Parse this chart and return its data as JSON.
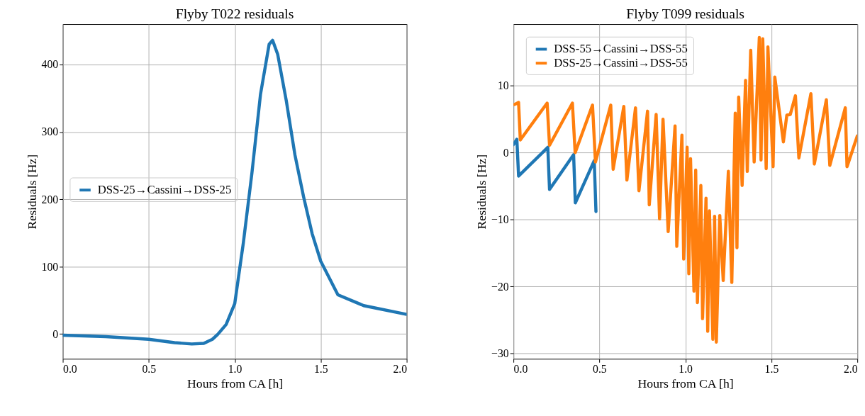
{
  "chart_data": [
    {
      "type": "line",
      "title": "Flyby T022 residuals",
      "xlabel": "Hours from CA [h]",
      "ylabel": "Residuals [Hz]",
      "xlim": [
        0,
        2
      ],
      "xticks": [
        {
          "value": 0,
          "label": "0.0"
        },
        {
          "value": 0.5,
          "label": "0.5"
        },
        {
          "value": 1,
          "label": "1.0"
        },
        {
          "value": 1.5,
          "label": "1.5"
        },
        {
          "value": 2,
          "label": "2.0"
        }
      ],
      "ylim": [
        -37,
        460
      ],
      "yticks": [
        0,
        100,
        200,
        300,
        400
      ],
      "grid": true,
      "legend": "center left",
      "series": [
        {
          "name": "DSS-25→Cassini→DSS-25",
          "color": "#1f77b4",
          "x": [
            0,
            0.25,
            0.5,
            0.65,
            0.75,
            0.82,
            0.87,
            0.9,
            0.95,
            1.0,
            1.05,
            1.1,
            1.15,
            1.2,
            1.22,
            1.25,
            1.3,
            1.35,
            1.4,
            1.45,
            1.5,
            1.6,
            1.75,
            2.0
          ],
          "values": [
            -2,
            -4,
            -8,
            -13,
            -15,
            -14,
            -8,
            -1,
            14,
            45,
            135,
            239,
            356,
            430,
            436,
            415,
            346,
            266,
            204,
            149,
            108,
            58,
            42,
            29
          ]
        }
      ]
    },
    {
      "type": "line",
      "title": "Flyby T099 residuals",
      "xlabel": "Hours from CA [h]",
      "ylabel": "Residuals [Hz]",
      "xlim": [
        0,
        2
      ],
      "xticks": [
        {
          "value": 0,
          "label": "0.0"
        },
        {
          "value": 0.5,
          "label": "0.5"
        },
        {
          "value": 1,
          "label": "1.0"
        },
        {
          "value": 1.5,
          "label": "1.5"
        },
        {
          "value": 2,
          "label": "2.0"
        }
      ],
      "ylim": [
        -30.8,
        19.2
      ],
      "yticks": [
        {
          "value": -30,
          "label": "−30"
        },
        {
          "value": -20,
          "label": "−20"
        },
        {
          "value": -10,
          "label": "−10"
        },
        0,
        10
      ],
      "grid": true,
      "legend": "top left",
      "series": [
        {
          "name": "DSS-55→Cassini→DSS-55",
          "color": "#1f77b4",
          "x": [
            0,
            0.02,
            0.03,
            0.2,
            0.21,
            0.35,
            0.36,
            0.47,
            0.48
          ],
          "values": [
            1.2,
            2,
            -3.5,
            0.8,
            -5.5,
            -0.3,
            -7.5,
            -1.2,
            -8.8
          ]
        },
        {
          "name": "DSS-25→Cassini→DSS-55",
          "color": "#ff7f0e",
          "x": [
            0.007,
            0.03,
            0.04,
            0.196,
            0.21,
            0.343,
            0.359,
            0.46,
            0.477,
            0.566,
            0.58,
            0.642,
            0.66,
            0.71,
            0.73,
            0.78,
            0.79,
            0.83,
            0.85,
            0.87,
            0.9,
            0.94,
            0.95,
            0.98,
            0.99,
            1.01,
            1.02,
            1.03,
            1.05,
            1.06,
            1.07,
            1.09,
            1.1,
            1.12,
            1.13,
            1.14,
            1.16,
            1.17,
            1.18,
            1.2,
            1.22,
            1.25,
            1.27,
            1.29,
            1.3,
            1.31,
            1.33,
            1.35,
            1.36,
            1.38,
            1.4,
            1.43,
            1.44,
            1.45,
            1.47,
            1.48,
            1.51,
            1.52,
            1.57,
            1.59,
            1.61,
            1.64,
            1.66,
            1.73,
            1.75,
            1.82,
            1.84,
            1.93,
            1.94,
            2.0
          ],
          "values": [
            7.2,
            7.5,
            1.9,
            7.4,
            1.1,
            7.4,
            0.0,
            7.1,
            -1.4,
            7.1,
            -2.5,
            6.9,
            -4.1,
            6.7,
            -5.7,
            6.2,
            -7.8,
            5.7,
            -9.9,
            5,
            -11.8,
            4,
            -14,
            2.6,
            -15.9,
            0.8,
            -18.1,
            -0.9,
            -20.7,
            -2.6,
            -22.4,
            -4.9,
            -24.8,
            -6.8,
            -26.7,
            -8.7,
            -27.9,
            -9.5,
            -28.3,
            -9.4,
            -19.1,
            -2.8,
            -19.4,
            5.9,
            -14.2,
            8.3,
            -4.9,
            10.8,
            -2.8,
            15.3,
            -1.4,
            17.2,
            -1.1,
            17,
            -2.4,
            15.8,
            -2.1,
            11.3,
            1.6,
            5.6,
            5.7,
            8.5,
            -0.8,
            8.8,
            -1.7,
            7.9,
            -1.9,
            6.7,
            -2.1,
            2.5
          ]
        }
      ]
    }
  ]
}
